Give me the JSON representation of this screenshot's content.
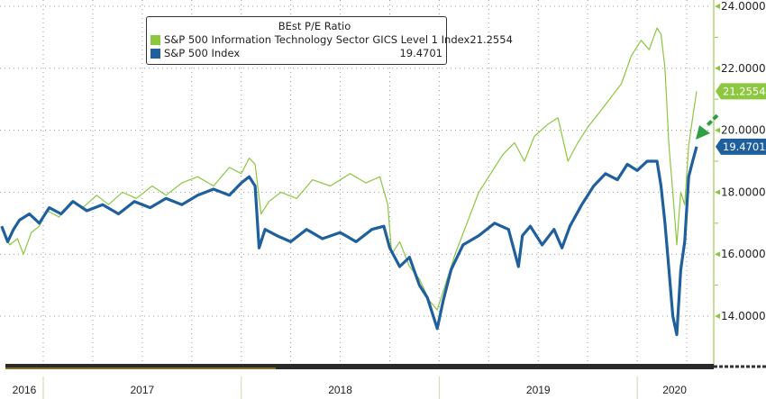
{
  "chart_data": {
    "type": "line",
    "title": "BEst P/E Ratio",
    "xlabel": "",
    "ylabel": "",
    "x_tick_labels": [
      "2016",
      "2017",
      "2018",
      "2019",
      "2020"
    ],
    "y_tick_labels": [
      "14.0000",
      "16.0000",
      "18.0000",
      "20.0000",
      "22.0000",
      "24.0000"
    ],
    "y_ticks": [
      14,
      16,
      18,
      20,
      22,
      24
    ],
    "ylim": [
      12.8,
      24.2
    ],
    "xlim": [
      2016.78,
      2020.45
    ],
    "grid": true,
    "legend_position": "top-center",
    "series": [
      {
        "name": "S&P 500 Information Technology Sector GICS Level 1 Index",
        "last_value": "21.2554",
        "color": "#8dc63f",
        "x": [
          2016.79,
          2016.83,
          2016.87,
          2016.9,
          2016.94,
          2016.98,
          2017.02,
          2017.08,
          2017.14,
          2017.2,
          2017.27,
          2017.33,
          2017.4,
          2017.47,
          2017.55,
          2017.62,
          2017.7,
          2017.78,
          2017.86,
          2017.94,
          2018.0,
          2018.04,
          2018.07,
          2018.1,
          2018.14,
          2018.2,
          2018.28,
          2018.36,
          2018.45,
          2018.55,
          2018.63,
          2018.7,
          2018.74,
          2018.76,
          2018.8,
          2018.85,
          2018.9,
          2018.95,
          2018.99,
          2019.03,
          2019.08,
          2019.14,
          2019.2,
          2019.26,
          2019.32,
          2019.38,
          2019.43,
          2019.48,
          2019.55,
          2019.6,
          2019.65,
          2019.7,
          2019.75,
          2019.8,
          2019.86,
          2019.92,
          2019.97,
          2020.02,
          2020.06,
          2020.1,
          2020.12,
          2020.14,
          2020.16,
          2020.18,
          2020.2,
          2020.22,
          2020.24,
          2020.26,
          2020.28,
          2020.3
        ],
        "y": [
          16.8,
          16.3,
          16.5,
          16.0,
          16.7,
          16.9,
          17.4,
          17.2,
          17.7,
          17.5,
          17.9,
          17.6,
          18.0,
          17.8,
          18.2,
          17.9,
          18.3,
          18.5,
          18.2,
          18.8,
          18.6,
          19.1,
          18.9,
          17.3,
          17.7,
          18.0,
          17.8,
          18.4,
          18.2,
          18.6,
          18.3,
          18.5,
          17.6,
          16.0,
          16.4,
          15.6,
          15.2,
          14.5,
          14.2,
          15.0,
          16.0,
          17.0,
          18.0,
          18.6,
          19.2,
          19.6,
          19.0,
          19.8,
          20.2,
          20.4,
          19.0,
          19.6,
          20.1,
          20.5,
          21.0,
          21.5,
          22.4,
          22.9,
          22.6,
          23.3,
          23.1,
          22.0,
          19.5,
          18.0,
          16.3,
          18.0,
          17.6,
          19.5,
          20.4,
          21.26
        ]
      },
      {
        "name": "S&P 500 Index",
        "last_value": "19.4701",
        "color": "#1f5f9e",
        "x": [
          2016.79,
          2016.82,
          2016.85,
          2016.88,
          2016.93,
          2016.98,
          2017.03,
          2017.09,
          2017.15,
          2017.22,
          2017.3,
          2017.38,
          2017.46,
          2017.54,
          2017.62,
          2017.7,
          2017.78,
          2017.86,
          2017.94,
          2018.0,
          2018.04,
          2018.07,
          2018.09,
          2018.12,
          2018.18,
          2018.25,
          2018.33,
          2018.41,
          2018.5,
          2018.58,
          2018.66,
          2018.72,
          2018.75,
          2018.8,
          2018.85,
          2018.9,
          2018.94,
          2018.97,
          2018.99,
          2019.02,
          2019.06,
          2019.12,
          2019.2,
          2019.28,
          2019.35,
          2019.4,
          2019.42,
          2019.46,
          2019.52,
          2019.58,
          2019.62,
          2019.66,
          2019.72,
          2019.78,
          2019.84,
          2019.9,
          2019.95,
          2020.0,
          2020.05,
          2020.1,
          2020.12,
          2020.14,
          2020.16,
          2020.18,
          2020.2,
          2020.22,
          2020.24,
          2020.26,
          2020.28,
          2020.3
        ],
        "y": [
          16.9,
          16.4,
          16.8,
          17.1,
          17.3,
          17.0,
          17.5,
          17.3,
          17.7,
          17.4,
          17.6,
          17.3,
          17.7,
          17.5,
          17.8,
          17.6,
          17.9,
          18.1,
          17.9,
          18.3,
          18.5,
          18.2,
          16.2,
          16.8,
          16.6,
          16.4,
          16.8,
          16.5,
          16.7,
          16.4,
          16.8,
          16.9,
          16.2,
          15.6,
          15.9,
          15.0,
          14.6,
          14.0,
          13.6,
          14.5,
          15.5,
          16.3,
          16.6,
          17.0,
          16.8,
          15.6,
          16.6,
          16.9,
          16.3,
          16.8,
          16.2,
          16.9,
          17.6,
          18.2,
          18.6,
          18.4,
          18.9,
          18.7,
          19.0,
          19.0,
          18.2,
          17.0,
          15.5,
          14.0,
          13.4,
          15.5,
          16.4,
          18.5,
          19.0,
          19.47
        ]
      }
    ]
  }
}
